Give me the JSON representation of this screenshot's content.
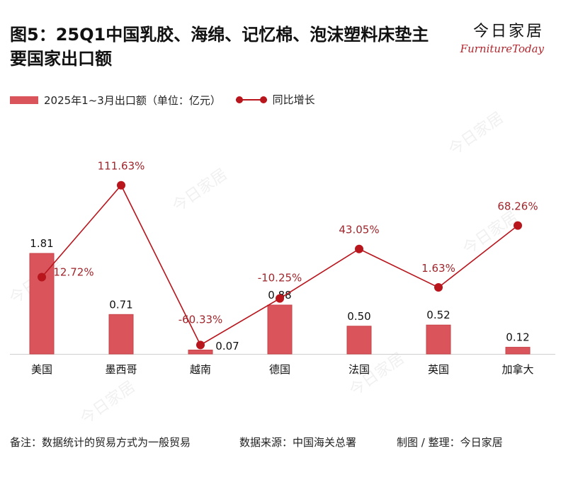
{
  "title": "图5：25Q1中国乳胶、海绵、记忆棉、泡沫塑料床垫主要国家出口额",
  "brand": {
    "name_cn": "今日家居",
    "name_en": "FurnitureToday"
  },
  "legend": {
    "bar_label": "2025年1~3月出口额（单位：亿元）",
    "line_label": "同比增长"
  },
  "colors": {
    "bar": "#d9545b",
    "bar_stroke": "#c8434a",
    "line": "#b8151c",
    "pct_label": "#a1262c"
  },
  "chart_data": {
    "type": "bar",
    "categories": [
      "美国",
      "墨西哥",
      "越南",
      "德国",
      "法国",
      "英国",
      "加拿大"
    ],
    "series": [
      {
        "name": "2025年1~3月出口额（单位：亿元）",
        "kind": "bar",
        "values": [
          1.81,
          0.71,
          0.07,
          0.88,
          0.5,
          0.52,
          0.12
        ],
        "labels": [
          "1.81",
          "0.71",
          "0.07",
          "0.88",
          "0.50",
          "0.52",
          "0.12"
        ]
      },
      {
        "name": "同比增长",
        "kind": "line",
        "values": [
          12.72,
          111.63,
          -60.33,
          -10.25,
          43.05,
          1.63,
          68.26
        ],
        "labels": [
          "12.72%",
          "111.63%",
          "-60.33%",
          "-10.25%",
          "43.05%",
          "1.63%",
          "68.26%"
        ]
      }
    ]
  },
  "footer": {
    "note": "备注：数据统计的贸易方式为一般贸易",
    "source": "数据来源：中国海关总署",
    "credit": "制图 / 整理：今日家居"
  }
}
